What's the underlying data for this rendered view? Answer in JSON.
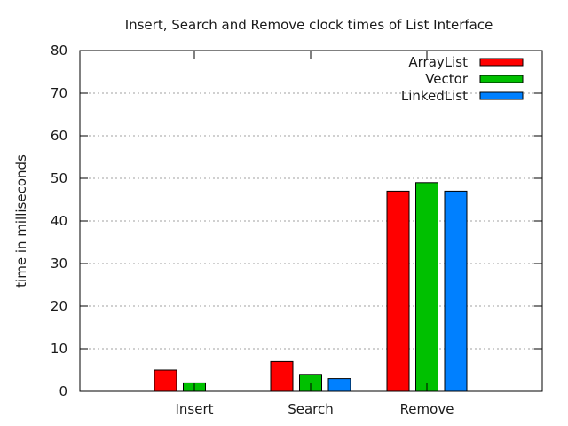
{
  "chart_data": {
    "type": "bar",
    "title": "Insert, Search and Remove clock times of List Interface",
    "xlabel": "",
    "ylabel": "time in milliseconds",
    "categories": [
      "Insert",
      "Search",
      "Remove"
    ],
    "series": [
      {
        "name": "ArrayList",
        "color": "#ff0000",
        "values": [
          5,
          7,
          47
        ]
      },
      {
        "name": "Vector",
        "color": "#00c000",
        "values": [
          2,
          4,
          49
        ]
      },
      {
        "name": "LinkedList",
        "color": "#0080ff",
        "values": [
          0,
          3,
          47
        ]
      }
    ],
    "ylim": [
      0,
      80
    ],
    "yticks": [
      0,
      10,
      20,
      30,
      40,
      50,
      60,
      70,
      80
    ],
    "grid": true,
    "legend": "top-right"
  }
}
